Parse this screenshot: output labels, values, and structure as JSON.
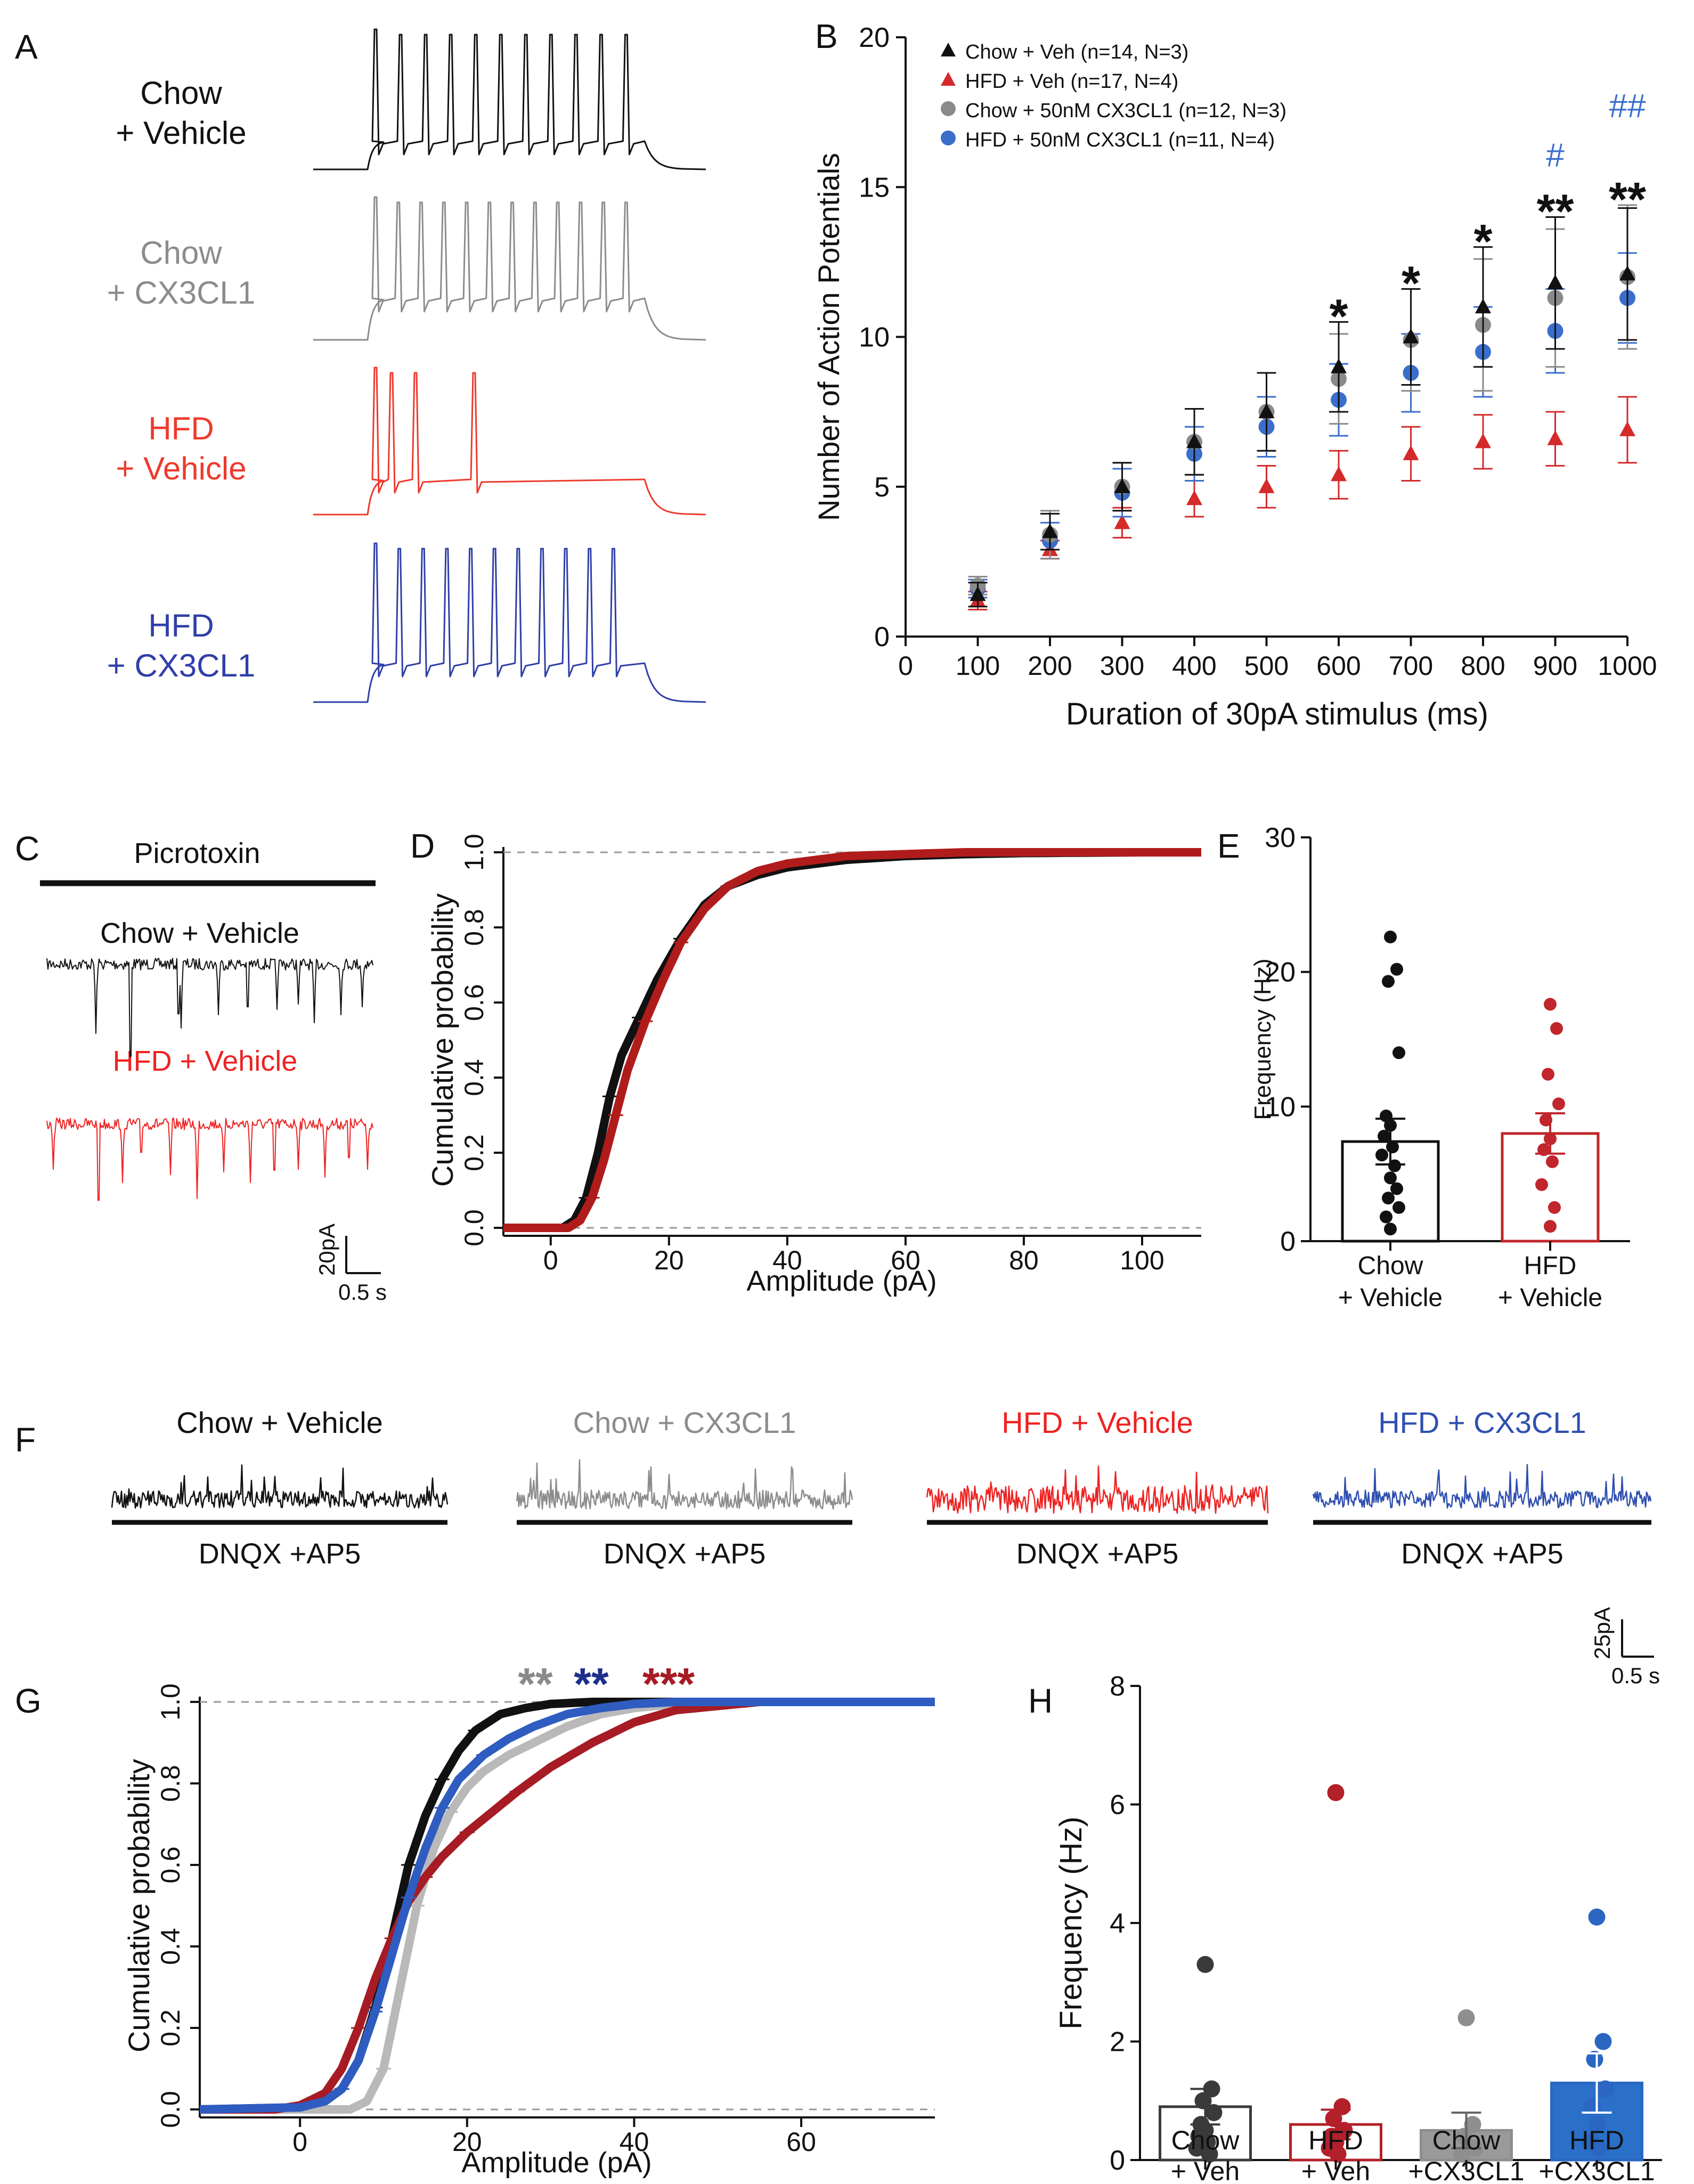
{
  "panels": {
    "A": {
      "label": "A",
      "traces": [
        {
          "name": "chow-vehicle",
          "line1": "Chow",
          "line2": "+ Vehicle",
          "color": "#111111",
          "spikes": 11
        },
        {
          "name": "chow-cx3cl1",
          "line1": "Chow",
          "line2": "+ CX3CL1",
          "color": "#8c8c8c",
          "spikes": 12
        },
        {
          "name": "hfd-vehicle",
          "line1": "HFD",
          "line2": "+ Vehicle",
          "color": "#ee3a2c",
          "spikes": 4
        },
        {
          "name": "hfd-cx3cl1",
          "line1": "HFD",
          "line2": "+ CX3CL1",
          "color": "#2f3fa8",
          "spikes": 11
        }
      ]
    },
    "C": {
      "label": "C",
      "bar_label": "Picrotoxin",
      "trace1_label": "Chow + Vehicle",
      "trace2_label": "HFD + Vehicle",
      "scale_y": "20pA",
      "scale_x": "0.5 s"
    },
    "F": {
      "label": "F",
      "traces": [
        {
          "name": "chow-vehicle",
          "label": "Chow + Vehicle",
          "drug": "DNQX +AP5",
          "color": "#111111"
        },
        {
          "name": "chow-cx3cl1",
          "label": "Chow + CX3CL1",
          "drug": "DNQX +AP5",
          "color": "#8c8c8c"
        },
        {
          "name": "hfd-vehicle",
          "label": "HFD + Vehicle",
          "drug": "DNQX +AP5",
          "color": "#ee2222"
        },
        {
          "name": "hfd-cx3cl1",
          "label": "HFD + CX3CL1",
          "drug": "DNQX +AP5",
          "color": "#2f4fb0"
        }
      ],
      "scale_y": "25pA",
      "scale_x": "0.5 s"
    }
  },
  "chart_data": [
    {
      "panel": "B",
      "label": "B",
      "type": "scatter",
      "title": "",
      "xlabel": "Duration of 30pA stimulus (ms)",
      "ylabel": "Number of Action Potentials",
      "xlim": [
        0,
        1000
      ],
      "ylim": [
        0,
        20
      ],
      "xticks": [
        "0",
        "100",
        "200",
        "300",
        "400",
        "500",
        "600",
        "700",
        "800",
        "900",
        "1000"
      ],
      "yticks": [
        "0",
        "5",
        "10",
        "15",
        "20"
      ],
      "x": [
        100,
        200,
        300,
        400,
        500,
        600,
        700,
        800,
        900,
        1000
      ],
      "series": [
        {
          "name": "Chow + Veh (n=14, N=3)",
          "marker": "triangle",
          "color": "#111111",
          "values": [
            1.4,
            3.5,
            5.0,
            6.5,
            7.5,
            9.0,
            10.0,
            11.0,
            11.8,
            12.1
          ],
          "err": [
            0.4,
            0.6,
            0.8,
            1.1,
            1.3,
            1.5,
            1.6,
            2.0,
            2.2,
            2.2
          ]
        },
        {
          "name": "HFD + Veh (n=17, N=4)",
          "marker": "triangle",
          "color": "#d42a2a",
          "values": [
            1.2,
            2.9,
            3.8,
            4.6,
            5.0,
            5.4,
            6.1,
            6.5,
            6.6,
            6.9
          ],
          "err": [
            0.3,
            0.3,
            0.5,
            0.6,
            0.7,
            0.8,
            0.9,
            0.9,
            0.9,
            1.1
          ]
        },
        {
          "name": "Chow + 50nM CX3CL1 (n=12, N=3)",
          "marker": "circle",
          "color": "#8a8a8a",
          "values": [
            1.7,
            3.4,
            5.0,
            6.5,
            7.5,
            8.6,
            9.9,
            10.4,
            11.3,
            12.0
          ],
          "err": [
            0.3,
            0.8,
            0.8,
            1.1,
            1.3,
            1.5,
            1.7,
            2.2,
            2.3,
            2.4
          ]
        },
        {
          "name": "HFD + 50nM CX3CL1 (n=11, N=4)",
          "marker": "circle",
          "color": "#3a6ecb",
          "values": [
            1.6,
            3.2,
            4.8,
            6.1,
            7.0,
            7.9,
            8.8,
            9.5,
            10.2,
            11.3
          ],
          "err": [
            0.3,
            0.6,
            0.8,
            0.9,
            1.0,
            1.2,
            1.3,
            1.5,
            1.4,
            1.5
          ]
        }
      ],
      "annotations": [
        {
          "x": 600,
          "text": "*",
          "color": "#111111"
        },
        {
          "x": 700,
          "text": "*",
          "color": "#111111"
        },
        {
          "x": 800,
          "text": "*",
          "color": "#111111"
        },
        {
          "x": 900,
          "text": "**",
          "color": "#111111"
        },
        {
          "x": 1000,
          "text": "**",
          "color": "#111111"
        },
        {
          "x": 900,
          "text": "#",
          "color": "#3a6ecb"
        },
        {
          "x": 1000,
          "text": "##",
          "color": "#3a6ecb"
        }
      ],
      "legend": "top-left"
    },
    {
      "panel": "D",
      "label": "D",
      "type": "line",
      "xlabel": "Amplitude (pA)",
      "ylabel": "Cumulative probability",
      "xlim": [
        -8,
        110
      ],
      "ylim": [
        0,
        1
      ],
      "xticks": [
        "0",
        "20",
        "40",
        "60",
        "80",
        "100"
      ],
      "yticks": [
        "0.0",
        "0.2",
        "0.4",
        "0.6",
        "0.8",
        "1.0"
      ],
      "series": [
        {
          "name": "Chow + Vehicle",
          "color": "#111111",
          "x": [
            -8,
            2,
            4,
            6,
            8,
            10,
            12,
            15,
            18,
            22,
            26,
            30,
            35,
            40,
            50,
            60,
            70,
            80,
            100,
            110
          ],
          "values": [
            0,
            0,
            0.02,
            0.08,
            0.2,
            0.35,
            0.46,
            0.56,
            0.66,
            0.77,
            0.86,
            0.91,
            0.94,
            0.96,
            0.98,
            0.99,
            0.995,
            0.998,
            1.0,
            1.0
          ]
        },
        {
          "name": "HFD + Vehicle",
          "color": "#b01c1c",
          "x": [
            -8,
            3,
            5,
            7,
            9,
            11,
            13,
            16,
            19,
            22,
            26,
            30,
            35,
            40,
            50,
            60,
            70,
            80,
            100,
            110
          ],
          "values": [
            0,
            0,
            0.02,
            0.08,
            0.18,
            0.3,
            0.42,
            0.55,
            0.66,
            0.76,
            0.85,
            0.91,
            0.95,
            0.97,
            0.99,
            0.995,
            1.0,
            1.0,
            1.0,
            1.0
          ]
        }
      ]
    },
    {
      "panel": "E",
      "label": "E",
      "type": "bar",
      "ylabel": "Frequency (Hz)",
      "ylim": [
        0,
        30
      ],
      "yticks": [
        "0",
        "10",
        "20",
        "30"
      ],
      "categories": [
        "Chow + Vehicle",
        "HFD + Vehicle"
      ],
      "category_lines": [
        [
          "Chow",
          "+ Vehicle"
        ],
        [
          "HFD",
          "+ Vehicle"
        ]
      ],
      "values": [
        7.4,
        8.0
      ],
      "err": [
        1.7,
        1.5
      ],
      "colors": [
        "#111111",
        "#c0262b"
      ],
      "points": [
        [
          22.6,
          20.2,
          19.3,
          14.0,
          9.3,
          8.6,
          7.8,
          7.0,
          6.4,
          5.6,
          4.7,
          3.9,
          3.2,
          2.5,
          1.8,
          0.9
        ],
        [
          17.6,
          15.8,
          12.4,
          10.2,
          9.0,
          7.6,
          6.8,
          5.9,
          4.2,
          2.5,
          1.1
        ]
      ]
    },
    {
      "panel": "G",
      "label": "G",
      "type": "line",
      "xlabel": "Amplitude (pA)",
      "ylabel": "Cumulative probability",
      "xlim": [
        -12,
        76
      ],
      "ylim": [
        0,
        1
      ],
      "xticks": [
        "0",
        "20",
        "40",
        "60"
      ],
      "yticks": [
        "0.0",
        "0.2",
        "0.4",
        "0.6",
        "0.8",
        "1.0"
      ],
      "series": [
        {
          "name": "Chow + Vehicle",
          "color": "#111111",
          "x": [
            -12,
            0,
            3,
            5,
            7,
            9,
            11,
            13,
            15,
            17,
            19,
            21,
            24,
            27,
            30,
            35,
            40,
            50,
            76
          ],
          "values": [
            0,
            0.005,
            0.02,
            0.05,
            0.12,
            0.25,
            0.42,
            0.6,
            0.72,
            0.81,
            0.88,
            0.93,
            0.97,
            0.985,
            0.995,
            1.0,
            1.0,
            1.0,
            1.0
          ]
        },
        {
          "name": "Chow + CX3CL1",
          "color": "#b9b9b9",
          "x": [
            -12,
            6,
            8,
            10,
            12,
            14,
            16,
            18,
            20,
            22,
            25,
            28,
            32,
            36,
            40,
            45,
            50,
            76
          ],
          "values": [
            0,
            0,
            0.02,
            0.1,
            0.3,
            0.5,
            0.64,
            0.73,
            0.79,
            0.83,
            0.87,
            0.9,
            0.94,
            0.97,
            0.985,
            0.995,
            1.0,
            1.0
          ]
        },
        {
          "name": "HFD + Vehicle",
          "color": "#a61b24",
          "x": [
            -12,
            -3,
            0,
            3,
            5,
            7,
            9,
            11,
            13,
            15,
            17,
            20,
            23,
            26,
            30,
            35,
            40,
            45,
            50,
            55,
            76
          ],
          "values": [
            0,
            0,
            0.01,
            0.04,
            0.1,
            0.2,
            0.32,
            0.42,
            0.51,
            0.57,
            0.62,
            0.68,
            0.73,
            0.78,
            0.84,
            0.9,
            0.95,
            0.98,
            0.99,
            1.0,
            1.0
          ]
        },
        {
          "name": "HFD + CX3CL1",
          "color": "#2f5cc0",
          "x": [
            -12,
            0,
            3,
            5,
            7,
            9,
            11,
            13,
            15,
            17,
            19,
            22,
            25,
            28,
            32,
            36,
            40,
            45,
            76
          ],
          "values": [
            0,
            0.005,
            0.02,
            0.05,
            0.12,
            0.24,
            0.38,
            0.52,
            0.64,
            0.74,
            0.81,
            0.87,
            0.91,
            0.94,
            0.97,
            0.985,
            0.995,
            1.0,
            1.0
          ]
        }
      ],
      "annotations": [
        {
          "text": "**",
          "color": "#8a8a8a"
        },
        {
          "text": "**",
          "color": "#1c2f8c"
        },
        {
          "text": "***",
          "color": "#a61b24"
        }
      ]
    },
    {
      "panel": "H",
      "label": "H",
      "type": "bar",
      "ylabel": "Frequency (Hz)",
      "ylim": [
        0,
        8
      ],
      "yticks": [
        "0",
        "2",
        "4",
        "6",
        "8"
      ],
      "categories": [
        "Chow + Veh",
        "HFD + Veh",
        "Chow +CX3CL1",
        "HFD +CX3CL1"
      ],
      "category_lines": [
        [
          "Chow",
          "+ Veh"
        ],
        [
          "HFD",
          "+ Veh"
        ],
        [
          "Chow",
          "+CX3CL1"
        ],
        [
          "HFD",
          "+CX3CL1"
        ]
      ],
      "values": [
        0.9,
        0.6,
        0.5,
        1.3
      ],
      "err": [
        0.3,
        0.25,
        0.3,
        0.5
      ],
      "colors": [
        "#3a3a3a",
        "#b3202a",
        "#8e8e8e",
        "#2a66c2"
      ],
      "fills": [
        "#ffffff",
        "#ffffff",
        "#9a9a9a",
        "#2a70c8"
      ],
      "points": [
        [
          3.3,
          1.2,
          1.0,
          0.8,
          0.6,
          0.5,
          0.4,
          0.3,
          0.2,
          0.1
        ],
        [
          6.2,
          0.9,
          0.7,
          0.5,
          0.4,
          0.3,
          0.2,
          0.1
        ],
        [
          2.4,
          0.6,
          0.4,
          0.2,
          0.1
        ],
        [
          4.1,
          2.0,
          1.7,
          1.2,
          0.9,
          0.6,
          0.3,
          0.2
        ]
      ]
    }
  ]
}
